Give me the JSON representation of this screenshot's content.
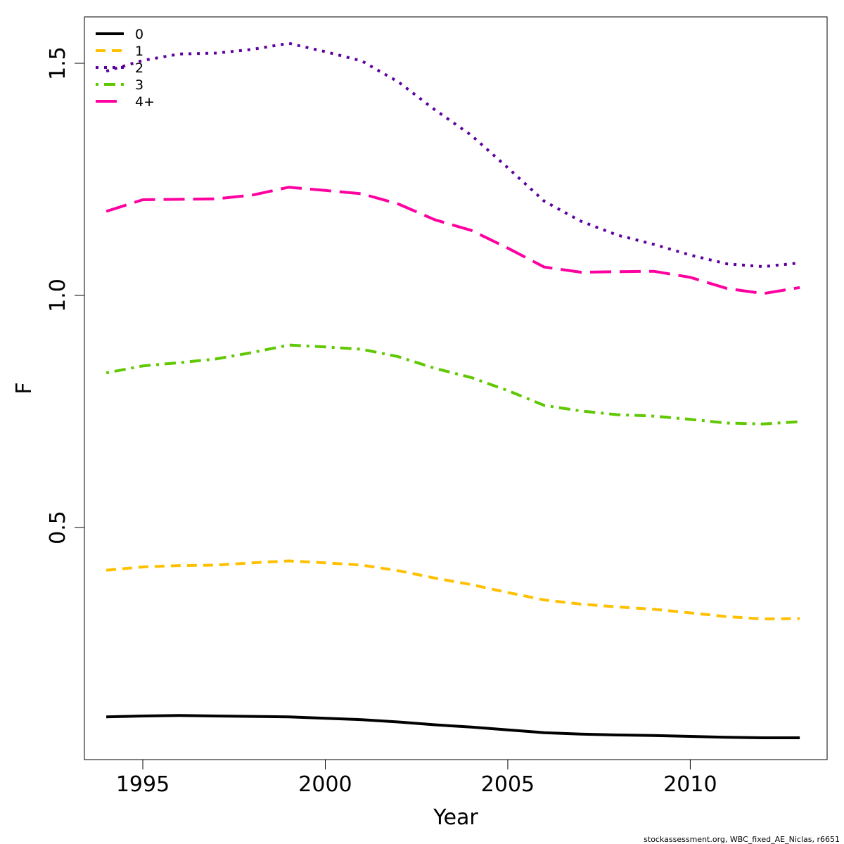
{
  "chart_data": {
    "type": "line",
    "title": "",
    "xlabel": "Year",
    "ylabel": "F",
    "xlim": [
      1993.4,
      2013.75
    ],
    "ylim": [
      0.0,
      1.6
    ],
    "x_ticks": [
      1995,
      2000,
      2005,
      2010
    ],
    "y_ticks": [
      0.5,
      1.0,
      1.5
    ],
    "y_tick_labels": [
      "0.5",
      "1.0",
      "1.5"
    ],
    "grid": false,
    "legend_position": "top-left",
    "x": [
      1994,
      1995,
      1996,
      1997,
      1998,
      1999,
      2000,
      2001,
      2002,
      2003,
      2004,
      2005,
      2006,
      2007,
      2008,
      2009,
      2010,
      2011,
      2012,
      2013
    ],
    "series": [
      {
        "name": "0",
        "color": "#000000",
        "dash": "solid",
        "values": [
          0.092,
          0.094,
          0.095,
          0.094,
          0.093,
          0.092,
          0.089,
          0.086,
          0.081,
          0.075,
          0.07,
          0.064,
          0.058,
          0.055,
          0.053,
          0.052,
          0.05,
          0.048,
          0.047,
          0.047
        ]
      },
      {
        "name": "1",
        "color": "#ffc000",
        "dash": "dashed",
        "values": [
          0.408,
          0.415,
          0.418,
          0.419,
          0.424,
          0.428,
          0.424,
          0.419,
          0.407,
          0.391,
          0.377,
          0.36,
          0.344,
          0.335,
          0.329,
          0.324,
          0.316,
          0.308,
          0.303,
          0.304
        ]
      },
      {
        "name": "2",
        "color": "#5d00a0",
        "dash": "dotted",
        "values": [
          1.483,
          1.506,
          1.52,
          1.522,
          1.53,
          1.543,
          1.525,
          1.505,
          1.46,
          1.4,
          1.345,
          1.275,
          1.203,
          1.16,
          1.13,
          1.11,
          1.087,
          1.068,
          1.062,
          1.07
        ]
      },
      {
        "name": "3",
        "color": "#5fc800",
        "dash": "dotdash",
        "values": [
          0.833,
          0.848,
          0.855,
          0.863,
          0.877,
          0.893,
          0.889,
          0.884,
          0.868,
          0.843,
          0.823,
          0.795,
          0.763,
          0.751,
          0.743,
          0.74,
          0.733,
          0.725,
          0.723,
          0.728
        ]
      },
      {
        "name": "4+",
        "color": "#ff00a0",
        "dash": "longdash",
        "values": [
          1.181,
          1.206,
          1.207,
          1.208,
          1.216,
          1.233,
          1.226,
          1.219,
          1.197,
          1.163,
          1.14,
          1.102,
          1.061,
          1.05,
          1.051,
          1.052,
          1.039,
          1.015,
          1.004,
          1.017
        ]
      }
    ],
    "footer": "stockassessment.org, WBC_fixed_AE_Niclas, r6651"
  }
}
